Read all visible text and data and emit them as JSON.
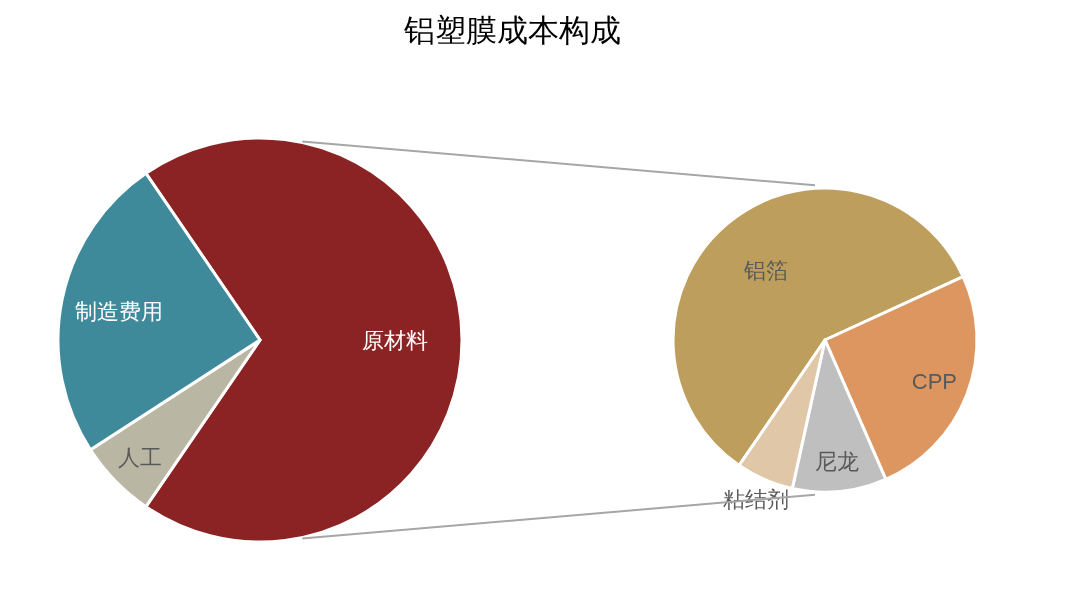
{
  "chart_data": [
    {
      "type": "pie",
      "title": "铝塑膜成本构成",
      "categories": [
        "原材料",
        "人工",
        "制造费用"
      ],
      "values": [
        69.1,
        6.3,
        24.6
      ],
      "colors": [
        "#8b2325",
        "#b9b7a4",
        "#3e899a"
      ]
    },
    {
      "type": "pie",
      "categories": [
        "铝箔",
        "CPP",
        "尼龙",
        "粘结剂"
      ],
      "values": [
        58.6,
        25.3,
        10.0,
        6.1
      ],
      "colors": [
        "#be9e5d",
        "#dd9660",
        "#bfbfbf",
        "#e0c7a8"
      ]
    }
  ]
}
